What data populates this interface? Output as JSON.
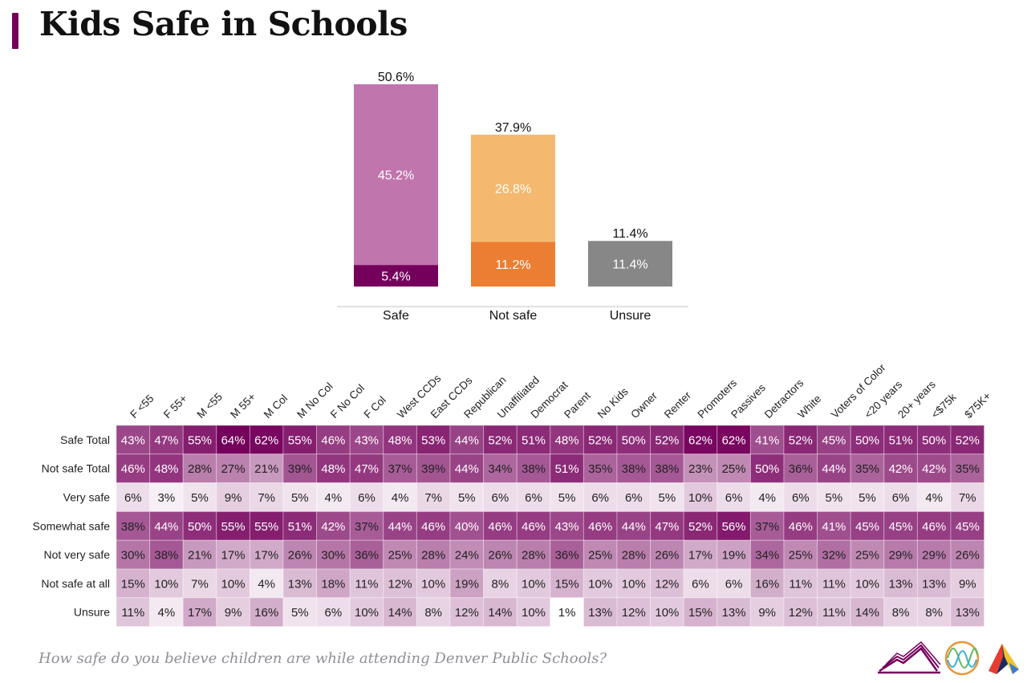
{
  "title": "Kids Safe in Schools",
  "footer_question": "How safe do you believe children are while attending Denver Public Schools?",
  "colors": {
    "accent": "#75005c",
    "safe_light": "#c075ad",
    "safe_dark": "#75005c",
    "notsafe_light": "#f4b96e",
    "notsafe_dark": "#ec7e33",
    "unsure": "#878787",
    "axis": "#d9d9d9"
  },
  "chart_data": [
    {
      "type": "bar",
      "stacked": true,
      "categories": [
        "Safe",
        "Not safe",
        "Unsure"
      ],
      "totals": [
        "50.6%",
        "37.9%",
        "11.4%"
      ],
      "total_values": [
        50.6,
        37.9,
        11.4
      ],
      "segments": [
        [
          {
            "value": 5.4,
            "label": "5.4%",
            "color_key": "safe_dark"
          },
          {
            "value": 45.2,
            "label": "45.2%",
            "color_key": "safe_light"
          }
        ],
        [
          {
            "value": 11.2,
            "label": "11.2%",
            "color_key": "notsafe_dark"
          },
          {
            "value": 26.8,
            "label": "26.8%",
            "color_key": "notsafe_light"
          }
        ],
        [
          {
            "value": 11.4,
            "label": "11.4%",
            "color_key": "unsure"
          }
        ]
      ],
      "ylim": [
        0,
        50.6
      ]
    },
    {
      "type": "heatmap",
      "columns": [
        "F <55",
        "F 55+",
        "M <55",
        "M 55+",
        "M Col",
        "M No Col",
        "F No Col",
        "F Col",
        "West CCDs",
        "East CCDs",
        "Republican",
        "Unaffiliated",
        "Democrat",
        "Parent",
        "No Kids",
        "Owner",
        "Renter",
        "Promoters",
        "Passives",
        "Detractors",
        "White",
        "Voters of Color",
        "<20 years",
        "20+ years",
        "<$75k",
        "$75K+"
      ],
      "rows": [
        {
          "label": "Safe Total",
          "values": [
            43,
            47,
            55,
            64,
            62,
            55,
            46,
            43,
            48,
            53,
            44,
            52,
            51,
            48,
            52,
            50,
            52,
            62,
            62,
            41,
            52,
            45,
            50,
            51,
            50,
            52
          ]
        },
        {
          "label": "Not safe Total",
          "values": [
            46,
            48,
            28,
            27,
            21,
            39,
            48,
            47,
            37,
            39,
            44,
            34,
            38,
            51,
            35,
            38,
            38,
            23,
            25,
            50,
            36,
            44,
            35,
            42,
            42,
            35
          ]
        },
        {
          "label": "Very safe",
          "values": [
            6,
            3,
            5,
            9,
            7,
            5,
            4,
            6,
            4,
            7,
            5,
            6,
            6,
            5,
            6,
            6,
            5,
            10,
            6,
            4,
            6,
            5,
            5,
            6,
            4,
            7
          ]
        },
        {
          "label": "Somewhat safe",
          "values": [
            38,
            44,
            50,
            55,
            55,
            51,
            42,
            37,
            44,
            46,
            40,
            46,
            46,
            43,
            46,
            44,
            47,
            52,
            56,
            37,
            46,
            41,
            45,
            45,
            46,
            45
          ]
        },
        {
          "label": "Not very safe",
          "values": [
            30,
            38,
            21,
            17,
            17,
            26,
            30,
            36,
            25,
            28,
            24,
            26,
            28,
            36,
            25,
            28,
            26,
            17,
            19,
            34,
            25,
            32,
            25,
            29,
            29,
            26
          ]
        },
        {
          "label": "Not safe at all",
          "values": [
            15,
            10,
            7,
            10,
            4,
            13,
            18,
            11,
            12,
            10,
            19,
            8,
            10,
            15,
            10,
            10,
            12,
            6,
            6,
            16,
            11,
            11,
            10,
            13,
            13,
            9
          ]
        },
        {
          "label": "Unsure",
          "values": [
            11,
            4,
            17,
            9,
            16,
            5,
            6,
            10,
            14,
            8,
            12,
            14,
            10,
            1,
            13,
            12,
            10,
            15,
            13,
            9,
            12,
            11,
            14,
            8,
            8,
            13
          ]
        }
      ],
      "value_suffix": "%",
      "scale": {
        "min": 1,
        "max": 64,
        "low_color": "#ffffff",
        "high_color": "#75005c"
      }
    }
  ],
  "logos": [
    "mountain-logo",
    "wave-circle-logo",
    "arrow-a-logo"
  ]
}
